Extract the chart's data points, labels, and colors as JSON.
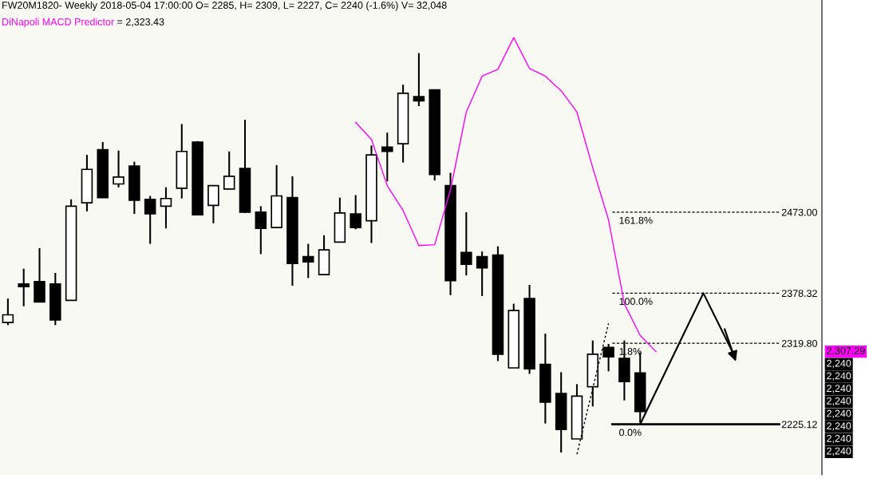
{
  "chart_data": {
    "type": "candlestick",
    "title": "FW20M1820- Weekly 2018-05-04 17:00:00 O= 2285, H= 2309, L= 2227, C= 2240 (-1.6%) V= 32,048",
    "subtitle": "= 2,323.43",
    "categories": [
      null,
      null,
      null,
      null,
      null,
      null,
      null,
      null,
      null,
      null,
      null,
      null,
      null,
      null,
      null,
      null,
      null,
      null,
      null,
      null,
      null,
      null,
      null,
      null,
      null,
      null,
      null,
      null,
      null,
      null,
      null,
      null,
      null,
      null,
      null,
      null,
      null,
      null,
      null,
      null,
      null,
      null,
      null,
      null,
      null,
      null,
      null,
      null,
      null,
      null,
      null,
      null
    ],
    "ohlc": [
      [
        2344,
        2372,
        2341,
        2353
      ],
      [
        2389,
        2407,
        2363,
        2386
      ],
      [
        2392,
        2431,
        2368,
        2368
      ],
      [
        2389,
        2402,
        2341,
        2347
      ],
      [
        2370,
        2488,
        2370,
        2480
      ],
      [
        2484,
        2540,
        2474,
        2523
      ],
      [
        2546,
        2555,
        2490,
        2490
      ],
      [
        2506,
        2545,
        2502,
        2514
      ],
      [
        2527,
        2532,
        2471,
        2487
      ],
      [
        2488,
        2492,
        2436,
        2471
      ],
      [
        2480,
        2502,
        2454,
        2489
      ],
      [
        2501,
        2576,
        2489,
        2544
      ],
      [
        2555,
        2556,
        2470,
        2470
      ],
      [
        2481,
        2504,
        2460,
        2504
      ],
      [
        2500,
        2544,
        2500,
        2515
      ],
      [
        2524,
        2581,
        2472,
        2473
      ],
      [
        2473,
        2480,
        2424,
        2454
      ],
      [
        2455,
        2528,
        2455,
        2492
      ],
      [
        2490,
        2515,
        2387,
        2413
      ],
      [
        2421,
        2436,
        2396,
        2415
      ],
      [
        2400,
        2446,
        2400,
        2429
      ],
      [
        2438,
        2490,
        2438,
        2472
      ],
      [
        2471,
        2493,
        2453,
        2455
      ],
      [
        2463,
        2551,
        2437,
        2540
      ],
      [
        2549,
        2566,
        2509,
        2544
      ],
      [
        2553,
        2622,
        2531,
        2612
      ],
      [
        2608,
        2659,
        2597,
        2603
      ],
      [
        2616,
        2616,
        2510,
        2517
      ],
      [
        2504,
        2519,
        2376,
        2393
      ],
      [
        2426,
        2473,
        2399,
        2412
      ],
      [
        2421,
        2427,
        2375,
        2408
      ],
      [
        2423,
        2433,
        2299,
        2307
      ],
      [
        2291,
        2366,
        2291,
        2358
      ],
      [
        2372,
        2388,
        2284,
        2290
      ],
      [
        2295,
        2331,
        2226,
        2251
      ],
      [
        2261,
        2286,
        2192,
        2219
      ],
      [
        2208,
        2272,
        2208,
        2258
      ],
      [
        2269,
        2323,
        2246,
        2307
      ],
      [
        2315,
        2319,
        2287,
        2304
      ],
      [
        2302,
        2323,
        2253,
        2275
      ],
      [
        2285,
        2309,
        2227,
        2240
      ],
      null,
      null,
      null,
      null,
      null,
      null,
      null,
      null,
      null,
      null,
      null
    ],
    "ylim": [
      2166,
      2721
    ],
    "yticks": [
      {
        "value": 2225.12,
        "label": "2225.12"
      },
      {
        "value": 2319.8,
        "label": "2319.80"
      },
      {
        "value": 2378.32,
        "label": "2378.32"
      },
      {
        "value": 2473.0,
        "label": "2473.00"
      }
    ],
    "tick_labels": "y",
    "series": [
      {
        "name": "DiNapoli MACD Predictor",
        "type": "line",
        "color": "#ff00ff",
        "values": [
          null,
          null,
          null,
          null,
          null,
          null,
          null,
          null,
          null,
          null,
          null,
          null,
          null,
          null,
          null,
          null,
          null,
          null,
          null,
          null,
          null,
          null,
          2578,
          2558,
          2504,
          2475,
          2434,
          2435,
          2499,
          2590,
          2632,
          2640,
          2677,
          2641,
          2632,
          2615,
          2590,
          2525,
          2464,
          2366,
          2329,
          2310,
          null,
          null,
          null,
          null,
          null,
          null,
          null,
          null,
          null,
          null
        ]
      },
      {
        "type": "line",
        "color": "#000000",
        "line_style": "dotted",
        "values": [
          null,
          null,
          null,
          null,
          null,
          null,
          null,
          null,
          null,
          null,
          null,
          null,
          null,
          null,
          null,
          null,
          null,
          null,
          null,
          null,
          null,
          null,
          null,
          null,
          null,
          null,
          null,
          null,
          null,
          null,
          null,
          null,
          null,
          null,
          null,
          null,
          2190,
          2267,
          2343,
          null,
          null,
          null,
          null,
          null,
          null,
          null,
          null,
          null,
          null,
          null,
          null,
          null
        ]
      }
    ],
    "ref_lines": [
      {
        "axis": "y",
        "value": 2473.0,
        "line_style": "dashed",
        "color": "#000000"
      },
      {
        "axis": "y",
        "value": 2378.32,
        "line_style": "dashed",
        "color": "#000000"
      },
      {
        "axis": "y",
        "value": 2319.8,
        "line_style": "dashed",
        "color": "#000000"
      },
      {
        "axis": "y",
        "value": 2225.12,
        "line_style": "solid",
        "color": "#000000"
      }
    ],
    "annotations": [
      {
        "text": "161.8%",
        "y": 2473.0
      },
      {
        "text": "100.0%",
        "y": 2378.32
      },
      {
        "text": "1.8%",
        "y": 2319.8
      },
      {
        "text": "0.0%",
        "y": 2225.12
      },
      "2,307.29",
      "2,240",
      "2,240",
      "2,240",
      "2,240",
      "2,240",
      "2,240",
      "2,240",
      "2,240"
    ]
  }
}
